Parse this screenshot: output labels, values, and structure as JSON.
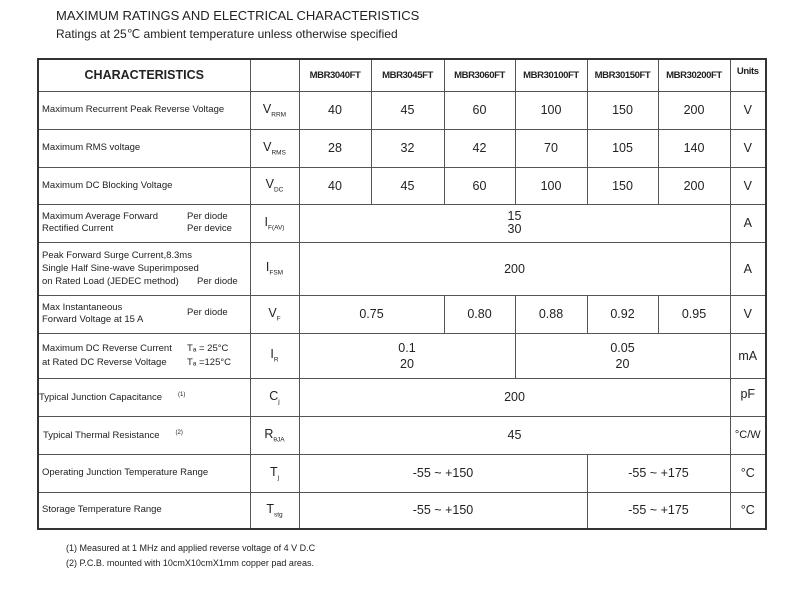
{
  "title": "MAXIMUM RATINGS AND ELECTRICAL CHARACTERISTICS",
  "subtitle": "Ratings at 25℃ ambient temperature unless otherwise specified",
  "header": {
    "characteristics": "CHARACTERISTICS",
    "models": [
      "MBR3040FT",
      "MBR3045FT",
      "MBR3060FT",
      "MBR30100FT",
      "MBR30150FT",
      "MBR30200FT"
    ],
    "units": "Units"
  },
  "rows": {
    "vrrm": {
      "label": "Maximum Recurrent Peak Reverse Voltage",
      "sym": "V",
      "sub": "RRM",
      "values": [
        "40",
        "45",
        "60",
        "100",
        "150",
        "200"
      ],
      "unit": "V"
    },
    "vrms": {
      "label": "Maximum RMS voltage",
      "sym": "V",
      "sub": "RMS",
      "values": [
        "28",
        "32",
        "42",
        "70",
        "105",
        "140"
      ],
      "unit": "V"
    },
    "vdc": {
      "label": "Maximum DC Blocking Voltage",
      "sym": "V",
      "sub": "DC",
      "values": [
        "40",
        "45",
        "60",
        "100",
        "150",
        "200"
      ],
      "unit": "V"
    },
    "ifav": {
      "label1": "Maximum Average Forward",
      "label2": "Rectified Current",
      "cond1": "Per diode",
      "cond2": "Per device",
      "sym": "I",
      "sub": "F(AV)",
      "value1": "15",
      "value2": "30",
      "unit": "A"
    },
    "ifsm": {
      "label1": "Peak Forward Surge Current,8.3ms",
      "label2": "Single Half Sine-wave Superimposed",
      "label3": "on Rated Load (JEDEC method)",
      "cond": "Per diode",
      "sym": "I",
      "sub": "FSM",
      "value": "200",
      "unit": "A"
    },
    "vf": {
      "label1": "Max Instantaneous",
      "label2": "Forward Voltage at 15 A",
      "cond": "Per diode",
      "sym": "V",
      "sub": "F",
      "values": [
        "0.75",
        "0.80",
        "0.88",
        "0.92",
        "0.95"
      ],
      "unit": "V"
    },
    "ir": {
      "label1": "Maximum DC Reverse Current",
      "label2": "at Rated DC Reverse Voltage",
      "cond1": "Tₐ = 25°C",
      "cond2": "Tₐ =125°C",
      "sym": "I",
      "sub": "R",
      "a1": "0.1",
      "a2": "20",
      "b1": "0.05",
      "b2": "20",
      "unit": "mA"
    },
    "cj": {
      "label": "Typical Junction Capacitance",
      "note": "(1)",
      "sym": "C",
      "sub": "j",
      "value": "200",
      "unit": "pF"
    },
    "rth": {
      "label": "Typical Thermal Resistance",
      "note": "(2)",
      "sym": "R",
      "sub": "θJA",
      "value": "45",
      "unit": "°C/W"
    },
    "tj": {
      "label": "Operating Junction Temperature Range",
      "sym": "T",
      "sub": "j",
      "a": "-55 ~ +150",
      "b": "-55 ~ +175",
      "unit": "°C"
    },
    "tstg": {
      "label": "Storage Temperature Range",
      "sym": "T",
      "sub": "stg",
      "a": "-55 ~ +150",
      "b": "-55 ~ +175",
      "unit": "°C"
    }
  },
  "footnotes": [
    "(1)  Measured at 1 MHz and applied reverse voltage of 4 V D.C",
    "(2)  P.C.B. mounted with 10cmX10cmX1mm copper pad areas."
  ]
}
